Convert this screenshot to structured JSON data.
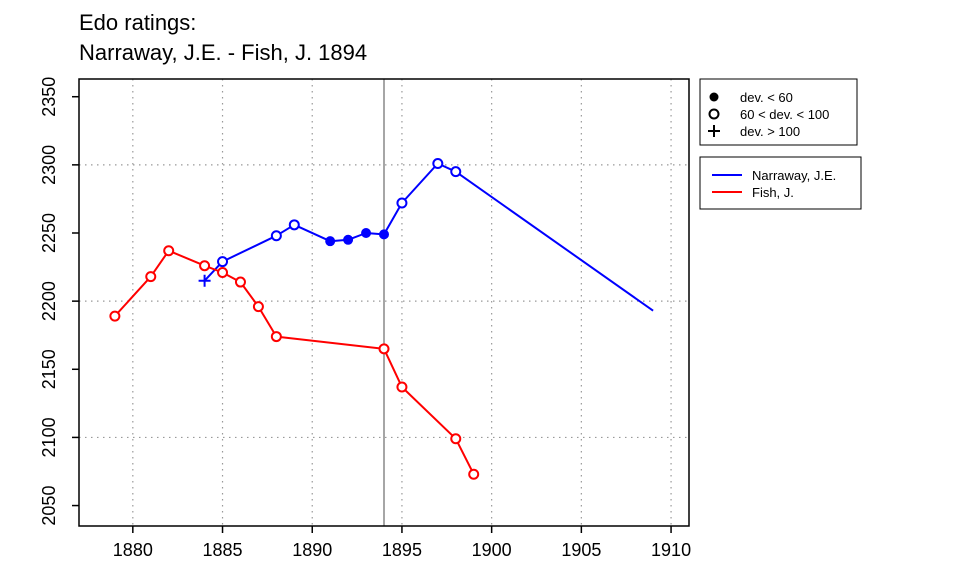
{
  "chart_data": {
    "type": "line",
    "title": [
      "Edo ratings:",
      "Narraway, J.E. - Fish, J. 1894"
    ],
    "xlabel": "",
    "ylabel": "",
    "xlim": [
      1877,
      1911
    ],
    "ylim": [
      2035,
      2363
    ],
    "x_ticks": [
      1880,
      1885,
      1890,
      1895,
      1900,
      1905,
      1910
    ],
    "y_ticks": [
      2050,
      2100,
      2150,
      2200,
      2250,
      2300,
      2350
    ],
    "grid": "dotted at x ticks 1880-1910 and y 2100, 2200, 2300",
    "reference_line_x": 1894,
    "marker_legend": {
      "placement": "top-right, outside plot",
      "items": [
        {
          "symbol": "filled-circle",
          "label": "dev. < 60"
        },
        {
          "symbol": "open-circle",
          "label": "60 < dev. < 100"
        },
        {
          "symbol": "plus",
          "label": "dev. > 100"
        }
      ]
    },
    "series_legend": {
      "placement": "right, outside plot",
      "items": [
        {
          "label": "Narraway, J.E.",
          "color": "#0000ff"
        },
        {
          "label": "Fish, J.",
          "color": "#ff0000"
        }
      ]
    },
    "series": [
      {
        "name": "Narraway, J.E.",
        "color": "#0000ff",
        "points": [
          {
            "x": 1884,
            "y": 2215,
            "marker": "plus"
          },
          {
            "x": 1885,
            "y": 2229,
            "marker": "open-circle"
          },
          {
            "x": 1888,
            "y": 2248,
            "marker": "open-circle"
          },
          {
            "x": 1889,
            "y": 2256,
            "marker": "open-circle"
          },
          {
            "x": 1891,
            "y": 2244,
            "marker": "filled-circle"
          },
          {
            "x": 1892,
            "y": 2245,
            "marker": "filled-circle"
          },
          {
            "x": 1893,
            "y": 2250,
            "marker": "filled-circle"
          },
          {
            "x": 1894,
            "y": 2249,
            "marker": "filled-circle"
          },
          {
            "x": 1895,
            "y": 2272,
            "marker": "open-circle"
          },
          {
            "x": 1897,
            "y": 2301,
            "marker": "open-circle"
          },
          {
            "x": 1898,
            "y": 2295,
            "marker": "open-circle"
          },
          {
            "x": 1909,
            "y": 2193,
            "marker": "none"
          }
        ]
      },
      {
        "name": "Fish, J.",
        "color": "#ff0000",
        "points": [
          {
            "x": 1879,
            "y": 2189,
            "marker": "open-circle"
          },
          {
            "x": 1881,
            "y": 2218,
            "marker": "open-circle"
          },
          {
            "x": 1882,
            "y": 2237,
            "marker": "open-circle"
          },
          {
            "x": 1884,
            "y": 2226,
            "marker": "open-circle"
          },
          {
            "x": 1885,
            "y": 2221,
            "marker": "open-circle"
          },
          {
            "x": 1886,
            "y": 2214,
            "marker": "open-circle"
          },
          {
            "x": 1887,
            "y": 2196,
            "marker": "open-circle"
          },
          {
            "x": 1888,
            "y": 2174,
            "marker": "open-circle"
          },
          {
            "x": 1894,
            "y": 2165,
            "marker": "open-circle"
          },
          {
            "x": 1895,
            "y": 2137,
            "marker": "open-circle"
          },
          {
            "x": 1898,
            "y": 2099,
            "marker": "open-circle"
          },
          {
            "x": 1899,
            "y": 2073,
            "marker": "open-circle"
          }
        ]
      }
    ]
  }
}
